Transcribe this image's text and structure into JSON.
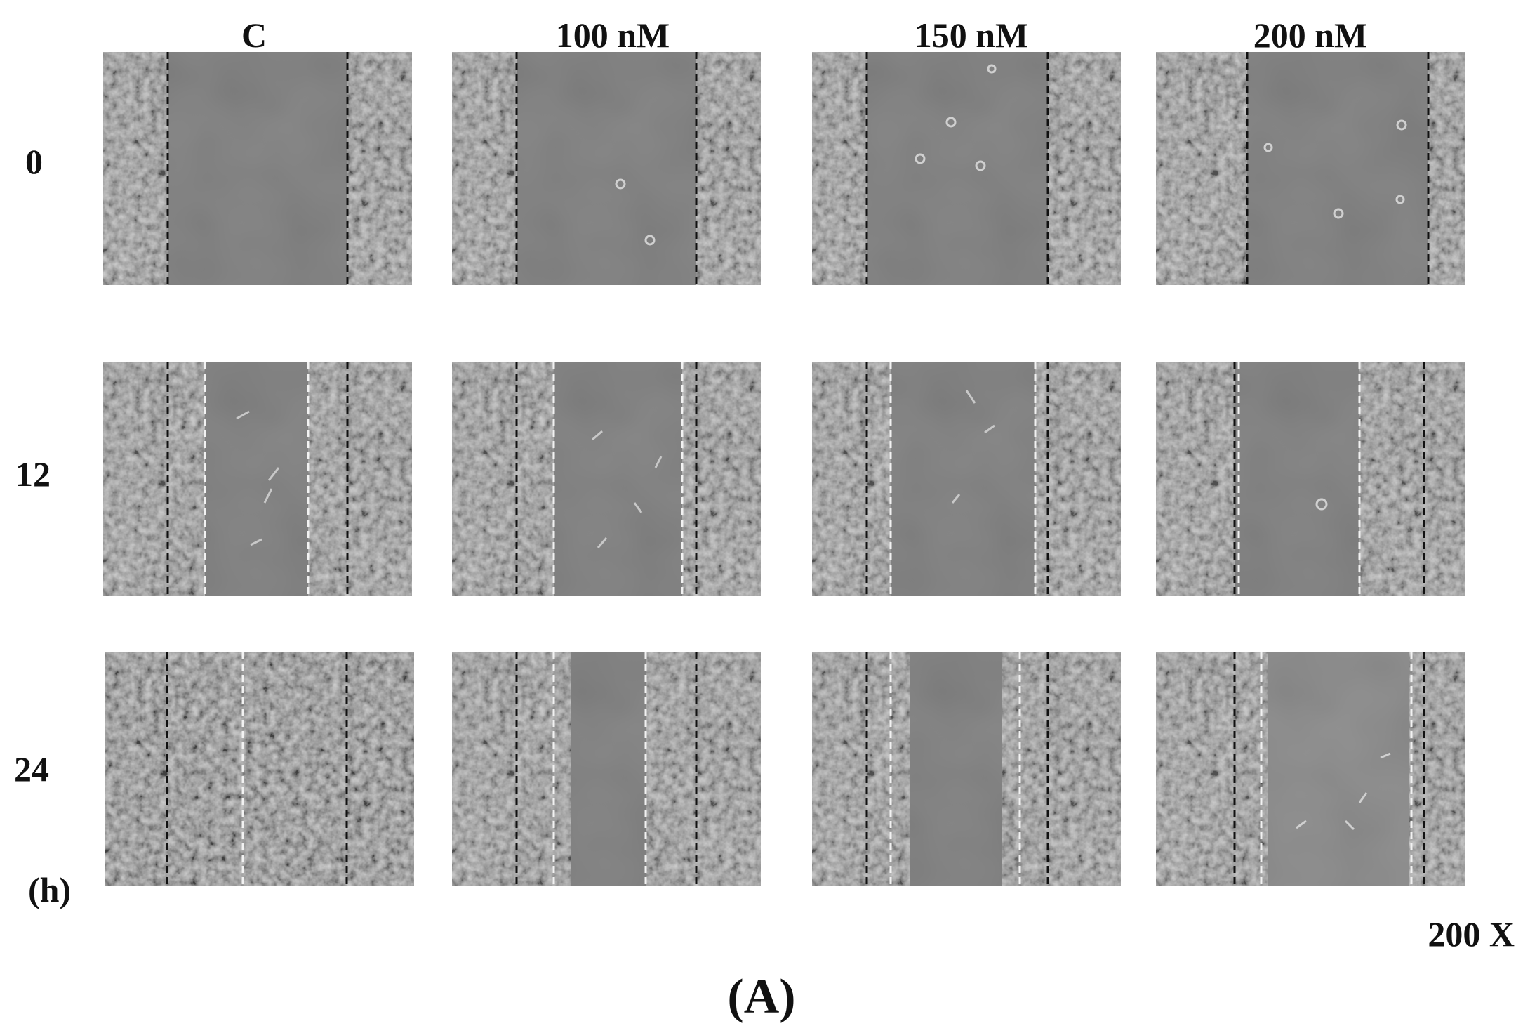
{
  "columns": [
    "C",
    "100 nM",
    "150 nM",
    "200 nM"
  ],
  "rows": [
    "0",
    "12",
    "24"
  ],
  "time_unit": "(h)",
  "magnification": "200 X",
  "panel_letter": "(A)",
  "colors": {
    "background": "#ffffff",
    "gap": "#7a7a7a",
    "cells": "#8e8e8e",
    "initial_edge_line": "#111111",
    "migration_edge_line": "#f2f2f2"
  },
  "panels": [
    {
      "column": "C",
      "row": "0",
      "black_lines": true,
      "white_lines": false
    },
    {
      "column": "100 nM",
      "row": "0",
      "black_lines": true,
      "white_lines": false
    },
    {
      "column": "150 nM",
      "row": "0",
      "black_lines": true,
      "white_lines": false
    },
    {
      "column": "200 nM",
      "row": "0",
      "black_lines": true,
      "white_lines": false
    },
    {
      "column": "C",
      "row": "12",
      "black_lines": true,
      "white_lines": true
    },
    {
      "column": "100 nM",
      "row": "12",
      "black_lines": true,
      "white_lines": true
    },
    {
      "column": "150 nM",
      "row": "12",
      "black_lines": true,
      "white_lines": true
    },
    {
      "column": "200 nM",
      "row": "12",
      "black_lines": true,
      "white_lines": true
    },
    {
      "column": "C",
      "row": "24",
      "black_lines": true,
      "white_lines": true
    },
    {
      "column": "100 nM",
      "row": "24",
      "black_lines": true,
      "white_lines": true
    },
    {
      "column": "150 nM",
      "row": "24",
      "black_lines": true,
      "white_lines": true
    },
    {
      "column": "200 nM",
      "row": "24",
      "black_lines": true,
      "white_lines": true
    }
  ]
}
